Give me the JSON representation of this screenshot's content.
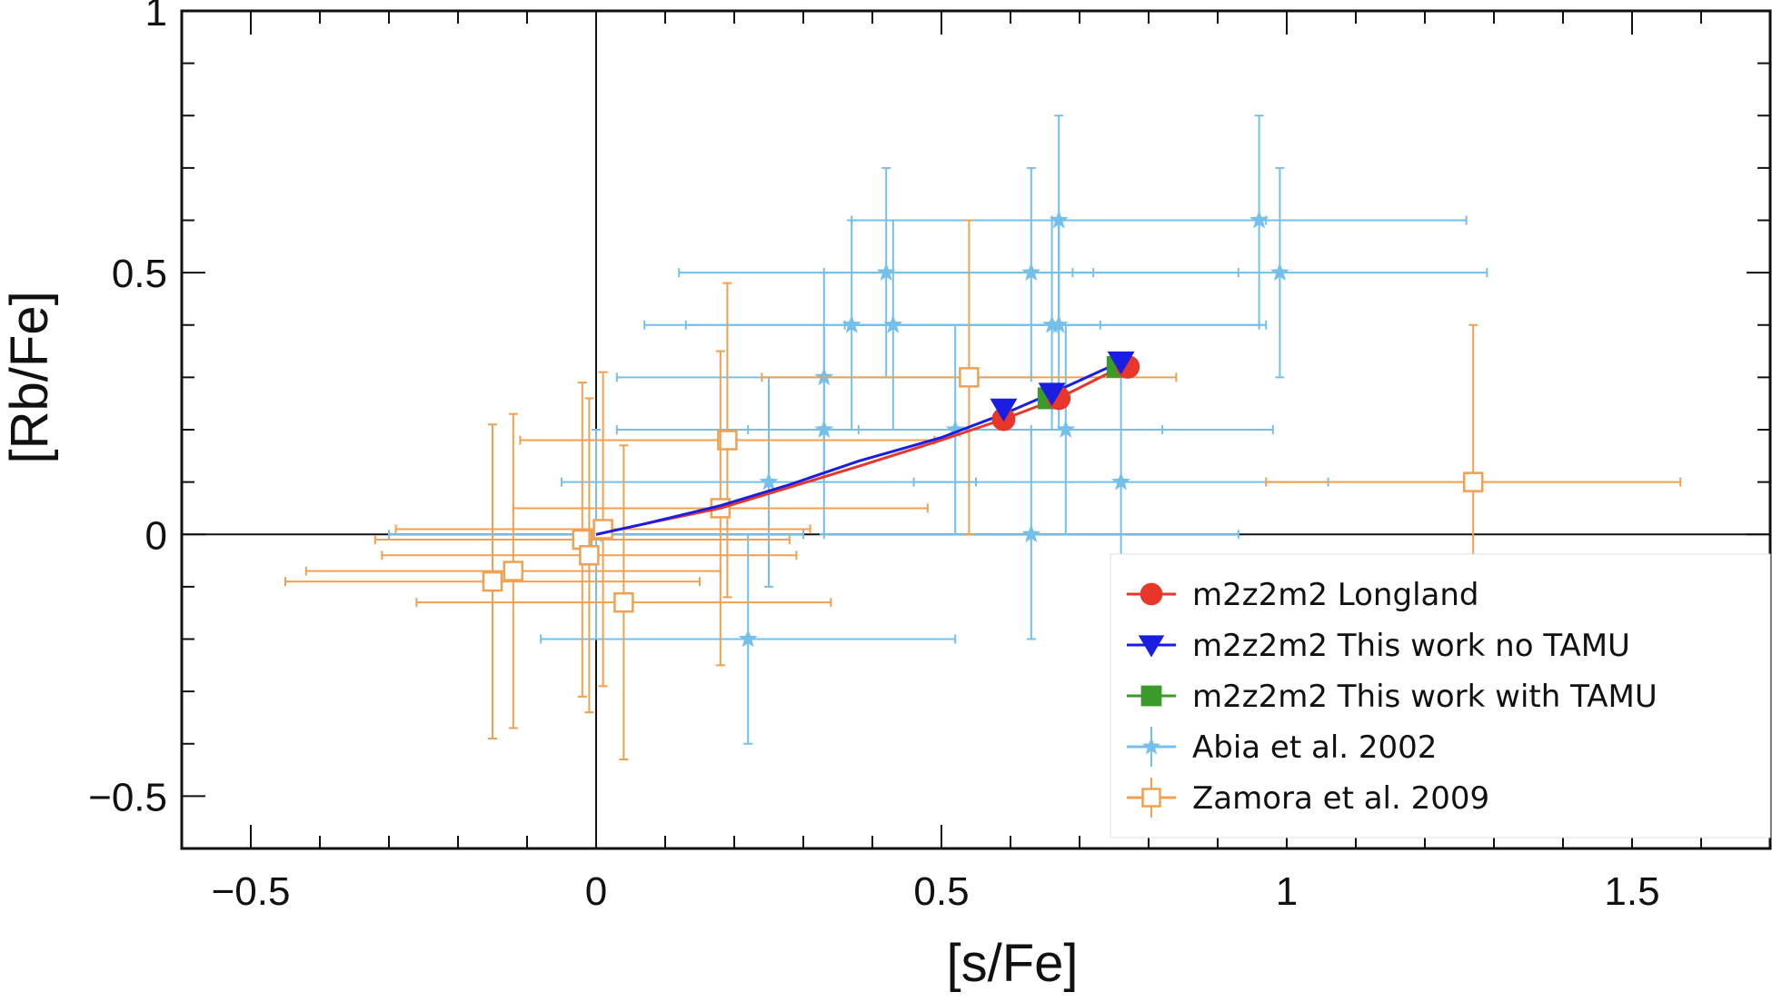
{
  "chart_data": {
    "type": "scatter",
    "xlabel": "[s/Fe]",
    "ylabel": "[Rb/Fe]",
    "xlim": [
      -0.6,
      1.7
    ],
    "ylim": [
      -0.6,
      1.0
    ],
    "x_ticks": [
      -0.5,
      0,
      0.5,
      1,
      1.5
    ],
    "x_tick_labels": [
      "−0.5",
      "0",
      "0.5",
      "1",
      "1.5"
    ],
    "y_ticks": [
      -0.5,
      0,
      0.5,
      1
    ],
    "y_tick_labels": [
      "−0.5",
      "0",
      "0.5",
      "1"
    ],
    "minor_step": 0.1,
    "grid": false,
    "zero_lines": true,
    "legend_position": "bottom-right",
    "models": [
      {
        "name": "m2z2m2 Longland",
        "color": "#e8372a",
        "marker": "circle",
        "line": {
          "x": [
            0,
            0.07,
            0.18,
            0.28,
            0.38,
            0.5,
            0.59,
            0.67,
            0.76
          ],
          "y": [
            0,
            0.02,
            0.05,
            0.09,
            0.13,
            0.18,
            0.22,
            0.26,
            0.32
          ]
        },
        "markers": {
          "x": [
            0.59,
            0.67,
            0.77
          ],
          "y": [
            0.22,
            0.26,
            0.32
          ]
        }
      },
      {
        "name": "m2z2m2 This work no TAMU",
        "color": "#1a1ee0",
        "marker": "triangle-down",
        "line": {
          "x": [
            0,
            0.07,
            0.18,
            0.28,
            0.38,
            0.5,
            0.59,
            0.66,
            0.76
          ],
          "y": [
            0,
            0.02,
            0.055,
            0.095,
            0.14,
            0.185,
            0.23,
            0.27,
            0.33
          ]
        },
        "markers": {
          "x": [
            0.59,
            0.66,
            0.76
          ],
          "y": [
            0.24,
            0.27,
            0.33
          ]
        }
      },
      {
        "name": "m2z2m2 This work with TAMU",
        "color": "#3a9a2a",
        "marker": "square",
        "line": null,
        "markers": {
          "x": [
            0.655,
            0.755
          ],
          "y": [
            0.26,
            0.32
          ]
        }
      }
    ],
    "observations": [
      {
        "name": "Abia et al. 2002",
        "color": "#74c0ea",
        "marker": "star",
        "points": [
          {
            "x": 0.96,
            "y": 0.6,
            "xerr": 0.3,
            "yerr": 0.2
          },
          {
            "x": 0.67,
            "y": 0.6,
            "xerr": 0.3,
            "yerr": 0.2
          },
          {
            "x": 0.42,
            "y": 0.5,
            "xerr": 0.3,
            "yerr": 0.2
          },
          {
            "x": 0.63,
            "y": 0.5,
            "xerr": 0.3,
            "yerr": 0.2
          },
          {
            "x": 0.99,
            "y": 0.5,
            "xerr": 0.3,
            "yerr": 0.2
          },
          {
            "x": 0.37,
            "y": 0.4,
            "xerr": 0.3,
            "yerr": 0.2
          },
          {
            "x": 0.43,
            "y": 0.4,
            "xerr": 0.3,
            "yerr": 0.2
          },
          {
            "x": 0.66,
            "y": 0.4,
            "xerr": 0.3,
            "yerr": 0.2
          },
          {
            "x": 0.67,
            "y": 0.4,
            "xerr": 0.3,
            "yerr": 0.2
          },
          {
            "x": 0.33,
            "y": 0.3,
            "xerr": 0.3,
            "yerr": 0.2
          },
          {
            "x": 0.33,
            "y": 0.2,
            "xerr": 0.3,
            "yerr": 0.2
          },
          {
            "x": 0.52,
            "y": 0.2,
            "xerr": 0.3,
            "yerr": 0.2
          },
          {
            "x": 0.68,
            "y": 0.2,
            "xerr": 0.3,
            "yerr": 0.2
          },
          {
            "x": 0.25,
            "y": 0.1,
            "xerr": 0.3,
            "yerr": 0.2
          },
          {
            "x": 0.76,
            "y": 0.1,
            "xerr": 0.3,
            "yerr": 0.2
          },
          {
            "x": 0.0,
            "y": 0.0,
            "xerr": 0.3,
            "yerr": 0.2
          },
          {
            "x": 0.63,
            "y": 0.0,
            "xerr": 0.3,
            "yerr": 0.2
          },
          {
            "x": 0.22,
            "y": -0.2,
            "xerr": 0.3,
            "yerr": 0.2
          }
        ]
      },
      {
        "name": "Zamora et al. 2009",
        "color": "#f0a050",
        "marker": "square-open",
        "points": [
          {
            "x": 0.54,
            "y": 0.3,
            "xerr": 0.3,
            "yerr": 0.3
          },
          {
            "x": 0.19,
            "y": 0.18,
            "xerr": 0.3,
            "yerr": 0.3
          },
          {
            "x": 0.18,
            "y": 0.05,
            "xerr": 0.3,
            "yerr": 0.3
          },
          {
            "x": 0.01,
            "y": 0.01,
            "xerr": 0.3,
            "yerr": 0.3
          },
          {
            "x": -0.02,
            "y": -0.01,
            "xerr": 0.3,
            "yerr": 0.3
          },
          {
            "x": -0.01,
            "y": -0.04,
            "xerr": 0.3,
            "yerr": 0.3
          },
          {
            "x": -0.12,
            "y": -0.07,
            "xerr": 0.3,
            "yerr": 0.3
          },
          {
            "x": -0.15,
            "y": -0.09,
            "xerr": 0.3,
            "yerr": 0.3
          },
          {
            "x": 0.04,
            "y": -0.13,
            "xerr": 0.3,
            "yerr": 0.3
          },
          {
            "x": 1.27,
            "y": 0.1,
            "xerr": 0.3,
            "yerr": 0.3
          }
        ]
      }
    ]
  }
}
